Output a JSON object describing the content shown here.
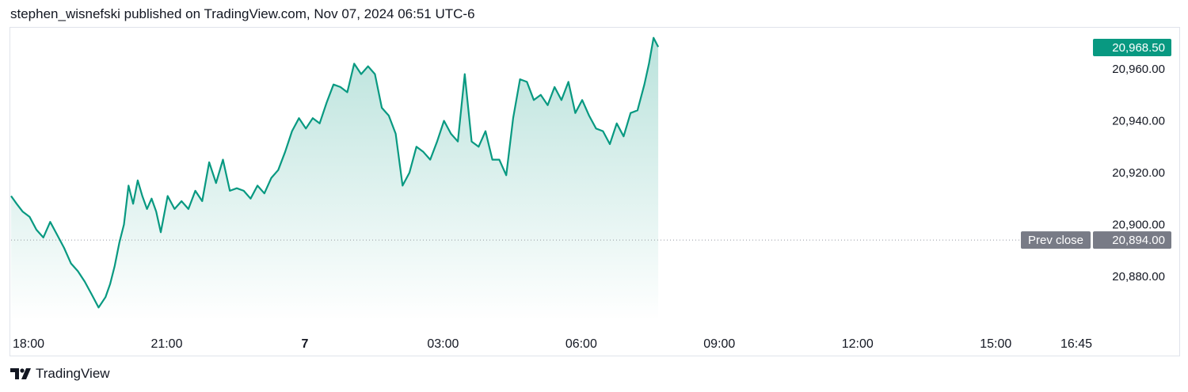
{
  "header": {
    "attribution": "stephen_wisnefski published on TradingView.com, Nov 07, 2024 06:51 UTC-6"
  },
  "footer": {
    "brand": "TradingView",
    "logo_icon": "tradingview-logo-icon"
  },
  "colors": {
    "line": "#089981",
    "area_top": "#089981",
    "last_price_bg": "#089981",
    "prev_close_bg": "#787b86",
    "grid_text": "#131722",
    "dotted": "#9598a1"
  },
  "chart_data": {
    "type": "area",
    "y_axis": {
      "ticks": [
        20880,
        20900,
        20920,
        20940,
        20960
      ],
      "tick_labels": [
        "20,880.00",
        "20,900.00",
        "20,920.00",
        "20,940.00",
        "20,960.00"
      ],
      "range": [
        20865,
        20975
      ]
    },
    "x_axis": {
      "ticks": [
        {
          "hours": 0,
          "label": "18:00",
          "bold": false
        },
        {
          "hours": 3,
          "label": "21:00",
          "bold": false
        },
        {
          "hours": 6,
          "label": "7",
          "bold": true
        },
        {
          "hours": 9,
          "label": "03:00",
          "bold": false
        },
        {
          "hours": 12,
          "label": "06:00",
          "bold": false
        },
        {
          "hours": 15,
          "label": "09:00",
          "bold": false
        },
        {
          "hours": 18,
          "label": "12:00",
          "bold": false
        },
        {
          "hours": 21,
          "label": "15:00",
          "bold": false
        },
        {
          "hours": 22.75,
          "label": "16:45",
          "bold": false
        }
      ],
      "range_hours": [
        0,
        24.2
      ]
    },
    "last_price": {
      "value": 20968.5,
      "label": "20,968.50"
    },
    "prev_close": {
      "value": 20894.0,
      "label": "20,894.00",
      "name": "Prev close"
    },
    "series": [
      {
        "x_hours": [
          0,
          0.12,
          0.25,
          0.4,
          0.55,
          0.7,
          0.85,
          1.0,
          1.15,
          1.3,
          1.45,
          1.6,
          1.75,
          1.9,
          2.05,
          2.15,
          2.25,
          2.35,
          2.45,
          2.55,
          2.65,
          2.75,
          2.85,
          2.95,
          3.05,
          3.15,
          3.25,
          3.4,
          3.55,
          3.7,
          3.85,
          4.0,
          4.15,
          4.3,
          4.45,
          4.6,
          4.75,
          4.9,
          5.05,
          5.2,
          5.35,
          5.5,
          5.65,
          5.8,
          5.95,
          6.1,
          6.25,
          6.4,
          6.55,
          6.7,
          6.85,
          7.0,
          7.15,
          7.3,
          7.45,
          7.6,
          7.75,
          7.9,
          8.05,
          8.2,
          8.35,
          8.5,
          8.65,
          8.8,
          8.95,
          9.1,
          9.25,
          9.4,
          9.55,
          9.7,
          9.85,
          10.0,
          10.15,
          10.3,
          10.45,
          10.6,
          10.75,
          10.9,
          11.05,
          11.2,
          11.35,
          11.5,
          11.65,
          11.8,
          11.95,
          12.1,
          12.25,
          12.4,
          12.55,
          12.7,
          12.85,
          13.0,
          13.15,
          13.3,
          13.45,
          13.6,
          13.75,
          13.85,
          13.95,
          14.05
        ],
        "values": [
          20911,
          20908,
          20905,
          20903,
          20898,
          20895,
          20901,
          20896,
          20891,
          20885,
          20882,
          20878,
          20873,
          20868,
          20872,
          20877,
          20884,
          20893,
          20900,
          20915,
          20908,
          20917,
          20911,
          20906,
          20910,
          20905,
          20897,
          20911,
          20906,
          20909,
          20906,
          20913,
          20909,
          20924,
          20916,
          20925,
          20913,
          20914,
          20913,
          20910,
          20915,
          20912,
          20918,
          20921,
          20928,
          20936,
          20941,
          20937,
          20941,
          20939,
          20947,
          20954,
          20953,
          20951,
          20962,
          20958,
          20961,
          20958,
          20945,
          20942,
          20935,
          20915,
          20920,
          20930,
          20928,
          20925,
          20932,
          20940,
          20935,
          20932,
          20958,
          20932,
          20930,
          20936,
          20925,
          20925,
          20919,
          20941,
          20956,
          20955,
          20948,
          20950,
          20946,
          20953,
          20948,
          20955,
          20943,
          20948,
          20942,
          20937,
          20936,
          20931,
          20939,
          20934,
          20943,
          20944,
          20954,
          20962,
          20972,
          20968.5
        ]
      }
    ]
  }
}
